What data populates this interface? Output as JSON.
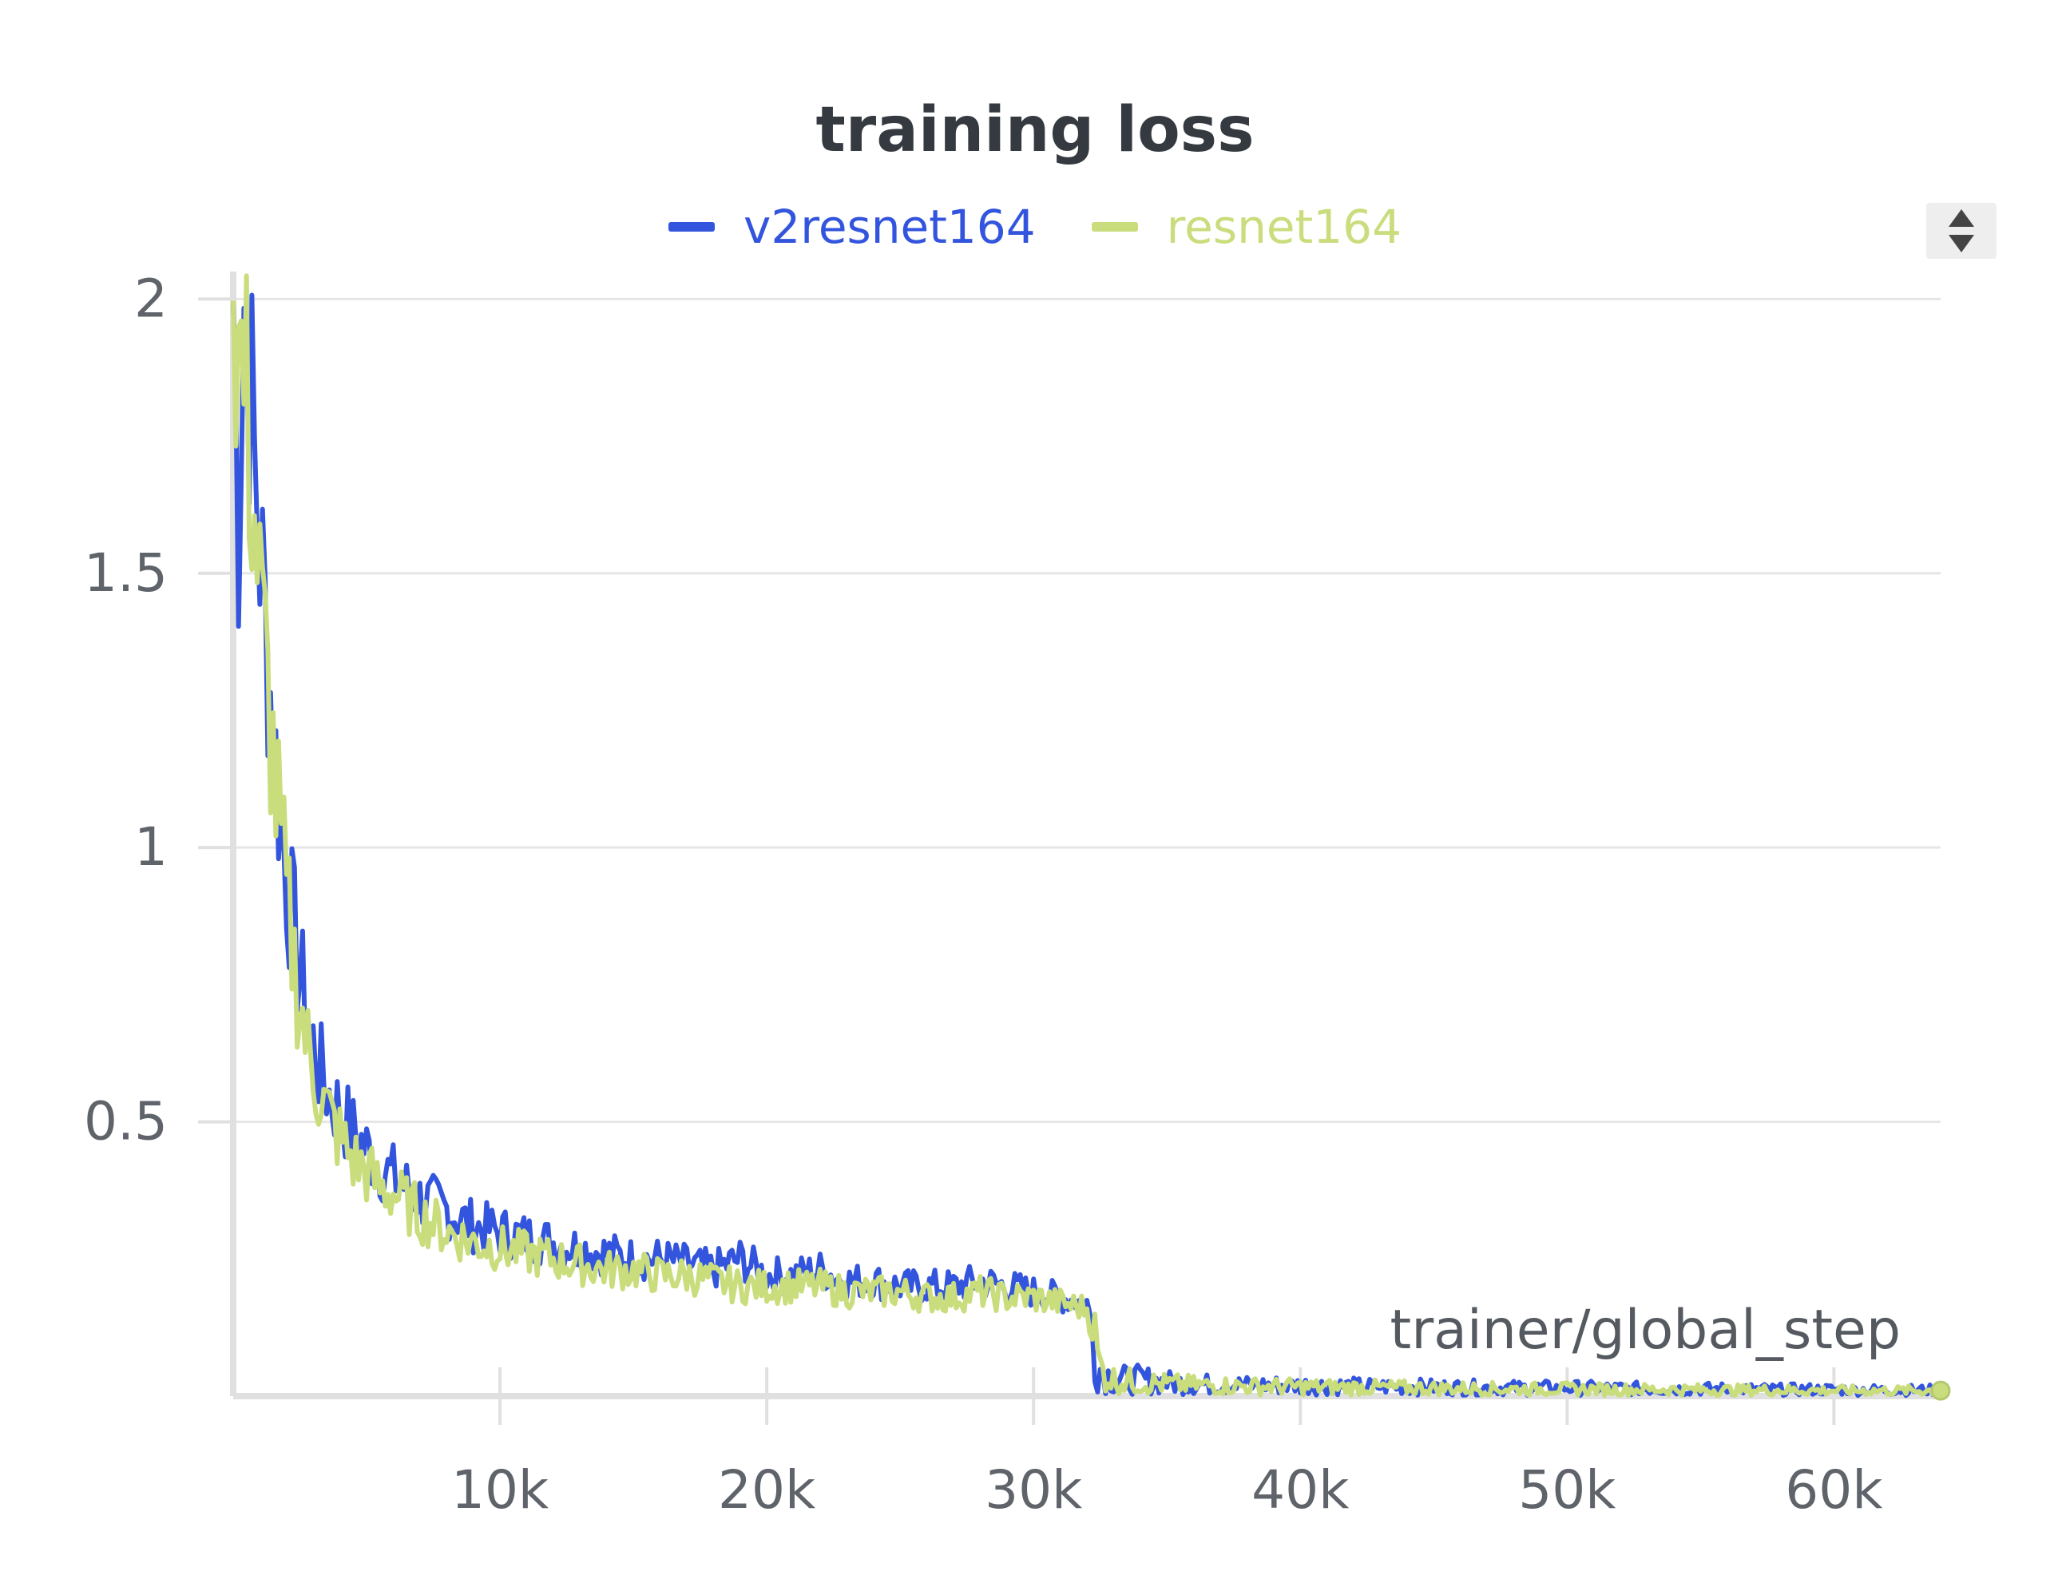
{
  "chart_data": {
    "type": "line",
    "title": "training loss",
    "xlabel": "trainer/global_step",
    "ylabel": "",
    "xlim": [
      0,
      64000
    ],
    "ylim": [
      0,
      2.05
    ],
    "xticks": [
      10000,
      20000,
      30000,
      40000,
      50000,
      60000
    ],
    "xtick_labels": [
      "10k",
      "20k",
      "30k",
      "40k",
      "50k",
      "60k"
    ],
    "yticks": [
      0.5,
      1,
      1.5,
      2
    ],
    "ytick_labels": [
      "0.5",
      "1",
      "1.5",
      "2"
    ],
    "grid": true,
    "legend_position": "top-center",
    "series": [
      {
        "name": "v2resnet164",
        "color": "#3355dd",
        "x": [
          0,
          200,
          400,
          600,
          800,
          1000,
          1300,
          1600,
          2000,
          2400,
          2800,
          3200,
          3600,
          4000,
          4500,
          5000,
          5500,
          6000,
          7000,
          8000,
          9000,
          10000,
          11000,
          12000,
          13000,
          14000,
          15000,
          16000,
          17000,
          18000,
          19000,
          20000,
          21000,
          22000,
          23000,
          24000,
          25000,
          26000,
          27000,
          28000,
          29000,
          30000,
          31000,
          32000,
          32500,
          33000,
          34000,
          35000,
          36000,
          38000,
          40000,
          42000,
          44000,
          46000,
          48000,
          50000,
          52000,
          54000,
          56000,
          58000,
          60000,
          62000,
          64000
        ],
        "y": [
          2.0,
          1.6,
          2.02,
          1.88,
          1.7,
          1.55,
          1.35,
          1.15,
          0.95,
          0.8,
          0.68,
          0.6,
          0.55,
          0.52,
          0.48,
          0.45,
          0.42,
          0.4,
          0.36,
          0.34,
          0.31,
          0.3,
          0.29,
          0.28,
          0.27,
          0.26,
          0.25,
          0.25,
          0.24,
          0.23,
          0.25,
          0.22,
          0.22,
          0.23,
          0.21,
          0.21,
          0.2,
          0.2,
          0.2,
          0.21,
          0.2,
          0.19,
          0.18,
          0.17,
          0.05,
          0.03,
          0.03,
          0.025,
          0.022,
          0.02,
          0.02,
          0.018,
          0.017,
          0.016,
          0.015,
          0.015,
          0.014,
          0.013,
          0.013,
          0.012,
          0.012,
          0.011,
          0.011
        ]
      },
      {
        "name": "resnet164",
        "color": "#c9dd7c",
        "x": [
          0,
          200,
          400,
          600,
          800,
          1000,
          1300,
          1600,
          2000,
          2400,
          2800,
          3200,
          3600,
          4000,
          4500,
          5000,
          5500,
          6000,
          7000,
          8000,
          9000,
          10000,
          11000,
          12000,
          13000,
          14000,
          15000,
          16000,
          17000,
          18000,
          19000,
          20000,
          21000,
          22000,
          23000,
          24000,
          25000,
          26000,
          27000,
          28000,
          29000,
          30000,
          31000,
          32000,
          32500,
          33000,
          34000,
          35000,
          36000,
          38000,
          40000,
          42000,
          44000,
          46000,
          48000,
          50000,
          52000,
          54000,
          56000,
          58000,
          60000,
          62000,
          64000
        ],
        "y": [
          2.05,
          1.9,
          1.85,
          1.75,
          1.6,
          1.45,
          1.28,
          1.1,
          0.9,
          0.75,
          0.63,
          0.56,
          0.51,
          0.47,
          0.43,
          0.41,
          0.38,
          0.37,
          0.33,
          0.3,
          0.28,
          0.27,
          0.26,
          0.25,
          0.24,
          0.23,
          0.23,
          0.22,
          0.22,
          0.21,
          0.2,
          0.2,
          0.2,
          0.2,
          0.19,
          0.19,
          0.19,
          0.18,
          0.18,
          0.19,
          0.18,
          0.18,
          0.17,
          0.16,
          0.05,
          0.03,
          0.025,
          0.022,
          0.02,
          0.018,
          0.017,
          0.016,
          0.015,
          0.014,
          0.013,
          0.013,
          0.012,
          0.012,
          0.011,
          0.011,
          0.01,
          0.01,
          0.01
        ]
      }
    ]
  }
}
